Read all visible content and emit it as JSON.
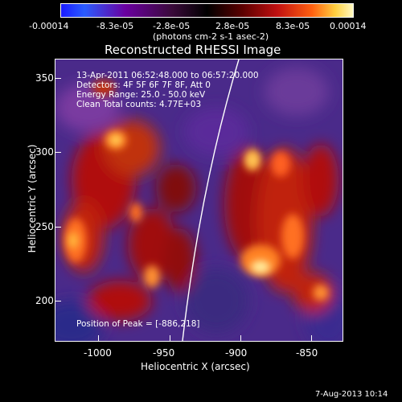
{
  "colorbar": {
    "labels": [
      "-0.00014",
      "-8.3e-05",
      "-2.8e-05",
      "2.8e-05",
      "8.3e-05",
      "0.00014"
    ],
    "units": "(photons cm-2 s-1 asec-2)"
  },
  "title": "Reconstructed RHESSI Image",
  "annotations": {
    "time_range": "13-Apr-2011 06:52:48.000 to 06:57:20.000",
    "detectors": "Detectors: 4F 5F 6F 7F 8F, Att 0",
    "energy": "Energy Range: 25.0 - 50.0 keV",
    "clean": "Clean    Total counts: 4.77E+03",
    "peak": "Position of Peak = [-886,218]"
  },
  "axes": {
    "x_label": "Heliocentric X (arcsec)",
    "y_label": "Heliocentric Y (arcsec)",
    "x_ticks": [
      "-1000",
      "-950",
      "-900",
      "-850"
    ],
    "y_ticks": [
      "350",
      "300",
      "250",
      "200"
    ]
  },
  "footer_date": "7-Aug-2013 10:14",
  "colors": {
    "background": "#000000",
    "limb_line": "#ffffff"
  }
}
